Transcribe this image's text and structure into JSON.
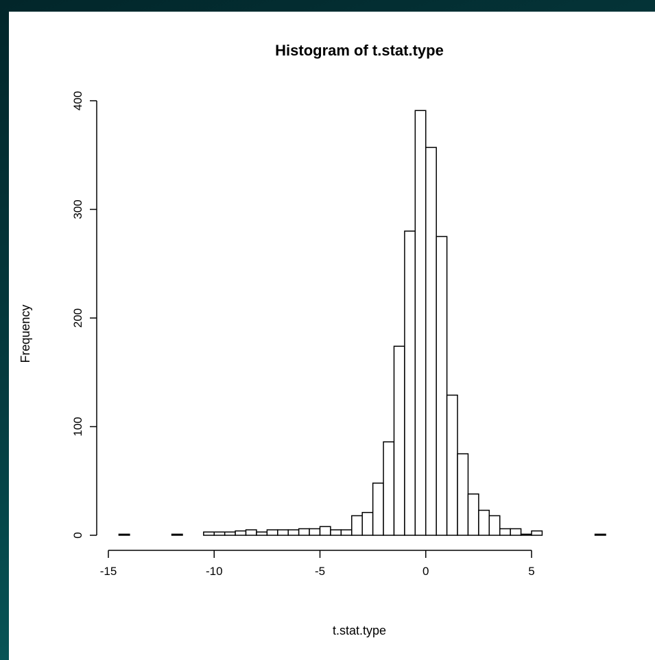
{
  "chart_data": {
    "type": "bar",
    "title": "Histogram of t.stat.type",
    "xlabel": "t.stat.type",
    "ylabel": "Frequency",
    "xlim": [
      -15,
      8.5
    ],
    "ylim": [
      0,
      400
    ],
    "xticks": [
      -15,
      -10,
      -5,
      0,
      5
    ],
    "yticks": [
      0,
      100,
      200,
      300,
      400
    ],
    "bin_width": 0.5,
    "bins": [
      {
        "x0": -14.5,
        "x1": -14.0,
        "count": 1
      },
      {
        "x0": -14.0,
        "x1": -13.5,
        "count": 0
      },
      {
        "x0": -13.5,
        "x1": -13.0,
        "count": 0
      },
      {
        "x0": -13.0,
        "x1": -12.5,
        "count": 0
      },
      {
        "x0": -12.5,
        "x1": -12.0,
        "count": 0
      },
      {
        "x0": -12.0,
        "x1": -11.5,
        "count": 1
      },
      {
        "x0": -11.5,
        "x1": -11.0,
        "count": 0
      },
      {
        "x0": -11.0,
        "x1": -10.5,
        "count": 0
      },
      {
        "x0": -10.5,
        "x1": -10.0,
        "count": 3
      },
      {
        "x0": -10.0,
        "x1": -9.5,
        "count": 3
      },
      {
        "x0": -9.5,
        "x1": -9.0,
        "count": 3
      },
      {
        "x0": -9.0,
        "x1": -8.5,
        "count": 4
      },
      {
        "x0": -8.5,
        "x1": -8.0,
        "count": 5
      },
      {
        "x0": -8.0,
        "x1": -7.5,
        "count": 3
      },
      {
        "x0": -7.5,
        "x1": -7.0,
        "count": 5
      },
      {
        "x0": -7.0,
        "x1": -6.5,
        "count": 5
      },
      {
        "x0": -6.5,
        "x1": -6.0,
        "count": 5
      },
      {
        "x0": -6.0,
        "x1": -5.5,
        "count": 6
      },
      {
        "x0": -5.5,
        "x1": -5.0,
        "count": 6
      },
      {
        "x0": -5.0,
        "x1": -4.5,
        "count": 8
      },
      {
        "x0": -4.5,
        "x1": -4.0,
        "count": 5
      },
      {
        "x0": -4.0,
        "x1": -3.5,
        "count": 5
      },
      {
        "x0": -3.5,
        "x1": -3.0,
        "count": 18
      },
      {
        "x0": -3.0,
        "x1": -2.5,
        "count": 21
      },
      {
        "x0": -2.5,
        "x1": -2.0,
        "count": 48
      },
      {
        "x0": -2.0,
        "x1": -1.5,
        "count": 86
      },
      {
        "x0": -1.5,
        "x1": -1.0,
        "count": 174
      },
      {
        "x0": -1.0,
        "x1": -0.5,
        "count": 280
      },
      {
        "x0": -0.5,
        "x1": 0.0,
        "count": 391
      },
      {
        "x0": 0.0,
        "x1": 0.5,
        "count": 357
      },
      {
        "x0": 0.5,
        "x1": 1.0,
        "count": 275
      },
      {
        "x0": 1.0,
        "x1": 1.5,
        "count": 129
      },
      {
        "x0": 1.5,
        "x1": 2.0,
        "count": 75
      },
      {
        "x0": 2.0,
        "x1": 2.5,
        "count": 38
      },
      {
        "x0": 2.5,
        "x1": 3.0,
        "count": 23
      },
      {
        "x0": 3.0,
        "x1": 3.5,
        "count": 18
      },
      {
        "x0": 3.5,
        "x1": 4.0,
        "count": 6
      },
      {
        "x0": 4.0,
        "x1": 4.5,
        "count": 6
      },
      {
        "x0": 4.5,
        "x1": 5.0,
        "count": 1
      },
      {
        "x0": 5.0,
        "x1": 5.5,
        "count": 4
      },
      {
        "x0": 5.5,
        "x1": 6.0,
        "count": 0
      },
      {
        "x0": 6.0,
        "x1": 6.5,
        "count": 0
      },
      {
        "x0": 6.5,
        "x1": 7.0,
        "count": 0
      },
      {
        "x0": 7.0,
        "x1": 7.5,
        "count": 0
      },
      {
        "x0": 7.5,
        "x1": 8.0,
        "count": 0
      },
      {
        "x0": 8.0,
        "x1": 8.5,
        "count": 1
      }
    ],
    "colors": {
      "fill": "#ffffff",
      "stroke": "#000000"
    },
    "grid": false,
    "legend": "none"
  }
}
